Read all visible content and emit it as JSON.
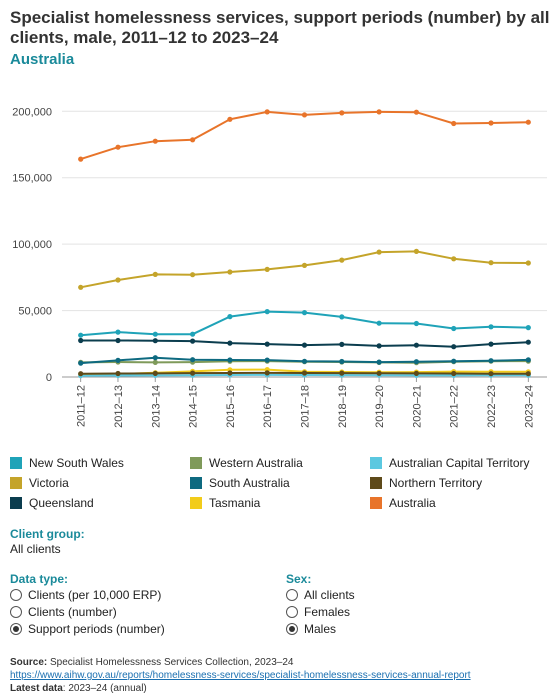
{
  "header": {
    "title": "Specialist homelessness services, support periods (number) by all clients, male, 2011–12 to 2023–24",
    "subtitle": "Australia"
  },
  "chart_data": {
    "type": "line",
    "x": [
      "2011–12",
      "2012–13",
      "2013–14",
      "2014–15",
      "2015–16",
      "2016–17",
      "2017–18",
      "2018–19",
      "2019–20",
      "2020–21",
      "2021–22",
      "2022–23",
      "2023–24"
    ],
    "ylim": [
      0,
      210000
    ],
    "yticks": [
      0,
      50000,
      100000,
      150000,
      200000
    ],
    "ytick_labels": [
      "0",
      "50,000",
      "100,000",
      "150,000",
      "200,000"
    ],
    "grid": true,
    "legend_position": "bottom",
    "series": [
      {
        "name": "New South Wales",
        "color": "#1fa3b8",
        "values": [
          31500,
          33800,
          32200,
          32200,
          45500,
          49200,
          48500,
          45200,
          40500,
          40300,
          36500,
          37800,
          37200
        ]
      },
      {
        "name": "Victoria",
        "color": "#c4a42a",
        "values": [
          67500,
          73000,
          77200,
          77000,
          79000,
          81000,
          84000,
          88000,
          94000,
          94500,
          89000,
          86000,
          85800
        ]
      },
      {
        "name": "Queensland",
        "color": "#0b3d4e",
        "values": [
          27500,
          27500,
          27300,
          27000,
          25500,
          24800,
          24000,
          24500,
          23400,
          23900,
          22800,
          24800,
          26200
        ]
      },
      {
        "name": "Western Australia",
        "color": "#7f9a5a",
        "values": [
          11000,
          11300,
          11000,
          11200,
          11800,
          12000,
          11500,
          11300,
          11000,
          10800,
          11500,
          11900,
          12000
        ]
      },
      {
        "name": "South Australia",
        "color": "#0e6a80",
        "values": [
          10500,
          12500,
          14500,
          13000,
          12800,
          12700,
          11800,
          11700,
          11200,
          11500,
          11900,
          12300,
          12900
        ]
      },
      {
        "name": "Tasmania",
        "color": "#f2cc1a",
        "values": [
          1800,
          2200,
          3200,
          4200,
          5400,
          5600,
          4000,
          3800,
          3600,
          3700,
          4100,
          4000,
          3900
        ]
      },
      {
        "name": "Australian Capital Territory",
        "color": "#5bc8e0",
        "values": [
          1000,
          1100,
          1200,
          1300,
          1500,
          1600,
          1500,
          1400,
          1300,
          1200,
          1200,
          1300,
          1300
        ]
      },
      {
        "name": "Northern Territory",
        "color": "#5e4a1a",
        "values": [
          2500,
          2600,
          2700,
          2900,
          3000,
          3100,
          3000,
          2900,
          2800,
          2700,
          2600,
          2500,
          2500
        ]
      },
      {
        "name": "Australia",
        "color": "#e8742a",
        "values": [
          164000,
          173000,
          177500,
          178500,
          194000,
          199500,
          197300,
          198800,
          199500,
          199300,
          190800,
          191200,
          191800
        ]
      }
    ]
  },
  "legend": {
    "items": [
      {
        "label": "New South Wales",
        "color": "#1fa3b8"
      },
      {
        "label": "Western Australia",
        "color": "#7f9a5a"
      },
      {
        "label": "Australian Capital Territory",
        "color": "#5bc8e0"
      },
      {
        "label": "Victoria",
        "color": "#c4a42a"
      },
      {
        "label": "South Australia",
        "color": "#0e6a80"
      },
      {
        "label": "Northern Territory",
        "color": "#5e4a1a"
      },
      {
        "label": "Queensland",
        "color": "#0b3d4e"
      },
      {
        "label": "Tasmania",
        "color": "#f2cc1a"
      },
      {
        "label": "Australia",
        "color": "#e8742a"
      }
    ]
  },
  "controls": {
    "client_group_label": "Client group:",
    "client_group_value": "All clients",
    "data_type_label": "Data type:",
    "data_type_options": [
      "Clients (per 10,000 ERP)",
      "Clients (number)",
      "Support periods (number)"
    ],
    "data_type_selected": 2,
    "sex_label": "Sex:",
    "sex_options": [
      "All clients",
      "Females",
      "Males"
    ],
    "sex_selected": 2
  },
  "footer": {
    "source_label": "Source:",
    "source_text": "Specialist Homelessness Services Collection, 2023–24",
    "link": "https://www.aihw.gov.au/reports/homelessness-services/specialist-homelessness-services-annual-report",
    "latest_label": "Latest data",
    "latest_text": ": 2023–24 (annual)"
  }
}
